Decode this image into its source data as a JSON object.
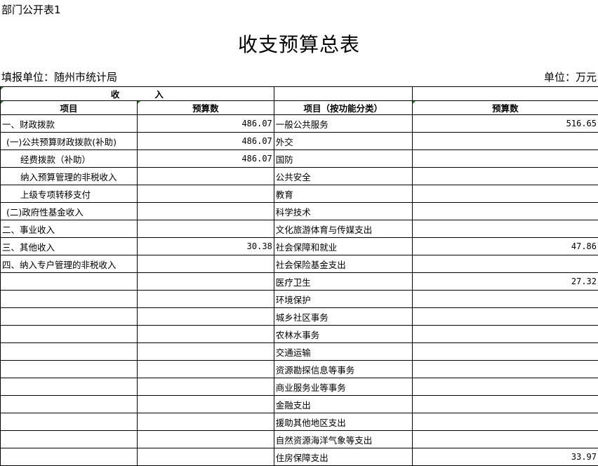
{
  "form_tag": "部门公开表1",
  "title": "收支预算总表",
  "reporting_unit": "填报单位：随州市统计局",
  "unit": "单位：万元",
  "header": {
    "income": "收　　　　入",
    "left_item": "项目",
    "left_amount": "预算数",
    "right_item": "项目（按功能分类）",
    "right_amount": "预算数"
  },
  "rows": [
    {
      "l": "一、财政拨款",
      "li": 0,
      "lv": "486.07",
      "r": "一般公共服务",
      "rv": "516.65"
    },
    {
      "l": "(一)公共预算财政拨款(补助)",
      "li": 1,
      "lv": "486.07",
      "r": "外交",
      "rv": ""
    },
    {
      "l": "经费拨款（补助）",
      "li": 2,
      "lv": "486.07",
      "r": "国防",
      "rv": ""
    },
    {
      "l": "纳入预算管理的非税收入",
      "li": 2,
      "lv": "",
      "r": "公共安全",
      "rv": ""
    },
    {
      "l": "上级专项转移支付",
      "li": 2,
      "lv": "",
      "r": "教育",
      "rv": ""
    },
    {
      "l": "(二)政府性基金收入",
      "li": 1,
      "lv": "",
      "r": "科学技术",
      "rv": ""
    },
    {
      "l": "二、事业收入",
      "li": 0,
      "lv": "",
      "r": "文化旅游体育与传媒支出",
      "rv": ""
    },
    {
      "l": "三、其他收入",
      "li": 0,
      "lv": "30.38",
      "r": "社会保障和就业",
      "rv": "47.86"
    },
    {
      "l": "四、纳入专户管理的非税收入",
      "li": 0,
      "lv": "",
      "r": "社会保险基金支出",
      "rv": ""
    },
    {
      "l": "",
      "li": 0,
      "lv": "",
      "r": "医疗卫生",
      "rv": "27.32"
    },
    {
      "l": "",
      "li": 0,
      "lv": "",
      "r": "环境保护",
      "rv": ""
    },
    {
      "l": "",
      "li": 0,
      "lv": "",
      "r": "城乡社区事务",
      "rv": ""
    },
    {
      "l": "",
      "li": 0,
      "lv": "",
      "r": "农林水事务",
      "rv": ""
    },
    {
      "l": "",
      "li": 0,
      "lv": "",
      "r": "交通运输",
      "rv": ""
    },
    {
      "l": "",
      "li": 0,
      "lv": "",
      "r": "资源勘探信息等事务",
      "rv": ""
    },
    {
      "l": "",
      "li": 0,
      "lv": "",
      "r": "商业服务业等事务",
      "rv": ""
    },
    {
      "l": "",
      "li": 0,
      "lv": "",
      "r": "金融支出",
      "rv": ""
    },
    {
      "l": "",
      "li": 0,
      "lv": "",
      "r": "援助其他地区支出",
      "rv": ""
    },
    {
      "l": "",
      "li": 0,
      "lv": "",
      "r": "自然资源海洋气象等支出",
      "rv": ""
    },
    {
      "l": "",
      "li": 0,
      "lv": "",
      "r": "住房保障支出",
      "rv": "33.97"
    }
  ]
}
